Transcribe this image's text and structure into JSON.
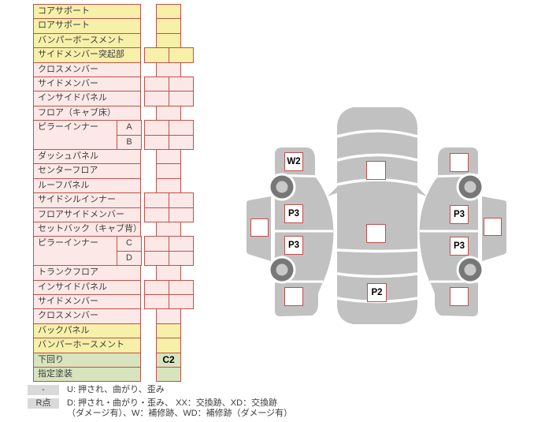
{
  "table": {
    "rows": [
      {
        "label": "コアサポート",
        "color": "yellow",
        "cells": 1
      },
      {
        "label": "ロアサポート",
        "color": "yellow",
        "cells": 1
      },
      {
        "label": "バンパーボースメント",
        "color": "yellow",
        "cells": 1
      },
      {
        "label": "サイドメンバー突起部",
        "color": "yellow",
        "cells": 2
      },
      {
        "label": "クロスメンバー",
        "color": "pink",
        "cells": 1
      },
      {
        "label": "サイドメンバー",
        "color": "pink",
        "cells": 2
      },
      {
        "label": "インサイドパネル",
        "color": "pink",
        "cells": 2
      },
      {
        "label": "フロア（キャブ床）",
        "color": "pink",
        "cells": 1
      },
      {
        "label": "ピラーインナー",
        "sub": "A",
        "span": 2,
        "color": "pink",
        "cells": 2
      },
      {
        "sub": "B",
        "color": "pink",
        "cells": 2
      },
      {
        "label": "ダッシュパネル",
        "color": "pink",
        "cells": 1
      },
      {
        "label": "センターフロア",
        "color": "pink",
        "cells": 1
      },
      {
        "label": "ルーフパネル",
        "color": "pink",
        "cells": 1
      },
      {
        "label": "サイドシルインナー",
        "color": "pink",
        "cells": 2
      },
      {
        "label": "フロアサイドメンバー",
        "color": "pink",
        "cells": 2
      },
      {
        "label": "セットバック（キャブ背）",
        "color": "pink",
        "cells": 1
      },
      {
        "label": "ピラーインナー",
        "sub": "C",
        "span": 2,
        "color": "pink",
        "cells": 2
      },
      {
        "sub": "D",
        "color": "pink",
        "cells": 2
      },
      {
        "label": "トランクフロア",
        "color": "pink",
        "cells": 1
      },
      {
        "label": "インサイドパネル",
        "color": "pink",
        "cells": 2
      },
      {
        "label": "サイドメンバー",
        "color": "pink",
        "cells": 2
      },
      {
        "label": "クロスメンバー",
        "color": "pink",
        "cells": 1
      },
      {
        "label": "バックパネル",
        "color": "yellow",
        "cells": 1
      },
      {
        "label": "バンパーホースメント",
        "color": "yellow",
        "cells": 1
      },
      {
        "label": "下回り",
        "color": "green",
        "cells": 1,
        "value": "C2"
      },
      {
        "label": "指定塗装",
        "color": "green",
        "cells": 1
      }
    ]
  },
  "legend": {
    "rows": [
      {
        "badge": "-",
        "text": "U: 押され、曲がり、歪み"
      },
      {
        "badge": "R点",
        "text": "D: 押され・曲がり・歪み、 XX：交換跡、XD：交換跡\n（ダメージ有）、W：補修跡、WD：補修跡（ダメージ有）"
      }
    ]
  },
  "diagram": {
    "left_side": {
      "fender_front": "W2",
      "door_front": "P3",
      "door_rear": "P3",
      "fender_rear": "",
      "side_window": ""
    },
    "right_side": {
      "fender_front": "",
      "door_front": "P3",
      "door_rear": "P3",
      "fender_rear": "",
      "side_window": ""
    },
    "top_view": {
      "hood": "",
      "roof": "",
      "trunk": "P2"
    }
  },
  "colors": {
    "cell_border": "#C0504D",
    "row_yellow": "#F7F0A9",
    "row_pink": "#FCE9E7",
    "row_green": "#D7E4BE",
    "car_body": "#C1C1C1",
    "wheel_ring": "#777777",
    "wheel_hub": "#C9C9C9",
    "marker_border": "#C0504D",
    "legend_badge_bg": "#D9D9D9"
  }
}
